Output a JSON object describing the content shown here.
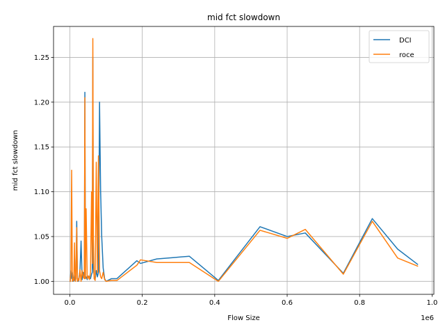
{
  "chart_data": {
    "type": "line",
    "title": "mid fct slowdown",
    "xlabel": "Flow Size",
    "ylabel": "mid fct slowdown",
    "x_offset_label": "1e6",
    "xlim": [
      -45000,
      1005000
    ],
    "ylim": [
      0.9855,
      1.2845
    ],
    "xticks": [
      0,
      200000,
      400000,
      600000,
      800000,
      1000000
    ],
    "xtick_labels": [
      "0.0",
      "0.2",
      "0.4",
      "0.6",
      "0.8",
      "1.0"
    ],
    "yticks": [
      1.0,
      1.05,
      1.1,
      1.15,
      1.2,
      1.25
    ],
    "ytick_labels": [
      "1.00",
      "1.05",
      "1.10",
      "1.15",
      "1.20",
      "1.25"
    ],
    "grid": true,
    "legend_position": "top-right",
    "series": [
      {
        "name": "DCI",
        "color": "#1f77b4",
        "x": [
          1000,
          3000,
          5000,
          7000,
          9000,
          11000,
          13000,
          15000,
          17000,
          19000,
          21000,
          23000,
          25000,
          28000,
          31000,
          34000,
          37000,
          40000,
          41500,
          43000,
          45000,
          48000,
          51000,
          54000,
          57000,
          60000,
          62000,
          63500,
          65000,
          67000,
          70000,
          73000,
          76000,
          79000,
          82000,
          85000,
          88000,
          92000,
          96000,
          100000,
          115000,
          130000,
          185000,
          195000,
          240000,
          330000,
          410000,
          525000,
          600000,
          650000,
          755000,
          835000,
          905000,
          960000
        ],
        "y": [
          1.0,
          1.012,
          1.003,
          1.01,
          1.0,
          1.004,
          1.001,
          1.008,
          1.003,
          1.067,
          1.003,
          1.0,
          1.003,
          1.012,
          1.045,
          1.002,
          1.01,
          1.003,
          1.211,
          1.003,
          1.005,
          1.002,
          1.006,
          1.005,
          1.003,
          1.008,
          1.01,
          1.25,
          1.015,
          1.006,
          1.003,
          1.012,
          1.005,
          1.01,
          1.2,
          1.1,
          1.05,
          1.015,
          1.003,
          1.0,
          1.003,
          1.003,
          1.023,
          1.02,
          1.025,
          1.028,
          1.001,
          1.061,
          1.05,
          1.054,
          1.009,
          1.07,
          1.036,
          1.019
        ]
      },
      {
        "name": "roce",
        "color": "#ff7f0e",
        "x": [
          1000,
          3000,
          5000,
          7000,
          9000,
          11000,
          13000,
          15000,
          17000,
          19000,
          21000,
          23000,
          25000,
          28000,
          31000,
          34000,
          37000,
          40000,
          41500,
          43000,
          45000,
          48000,
          51000,
          54000,
          57000,
          60000,
          62000,
          63500,
          65000,
          67000,
          70000,
          73000,
          76000,
          79000,
          82000,
          85000,
          88000,
          92000,
          96000,
          100000,
          115000,
          130000,
          185000,
          195000,
          240000,
          330000,
          410000,
          525000,
          600000,
          650000,
          755000,
          835000,
          905000,
          960000
        ],
        "y": [
          1.0,
          1.01,
          1.124,
          1.0,
          1.003,
          1.001,
          1.043,
          1.0,
          1.003,
          1.06,
          1.0,
          1.003,
          1.001,
          1.013,
          1.0,
          1.012,
          1.005,
          1.003,
          1.205,
          1.003,
          1.081,
          1.003,
          1.006,
          1.002,
          1.01,
          1.1,
          1.02,
          1.271,
          1.05,
          1.003,
          1.001,
          1.133,
          1.01,
          1.14,
          1.012,
          1.005,
          1.003,
          1.01,
          1.002,
          1.0,
          1.001,
          1.001,
          1.018,
          1.024,
          1.021,
          1.021,
          1.0,
          1.057,
          1.048,
          1.058,
          1.008,
          1.067,
          1.026,
          1.017
        ]
      }
    ]
  }
}
